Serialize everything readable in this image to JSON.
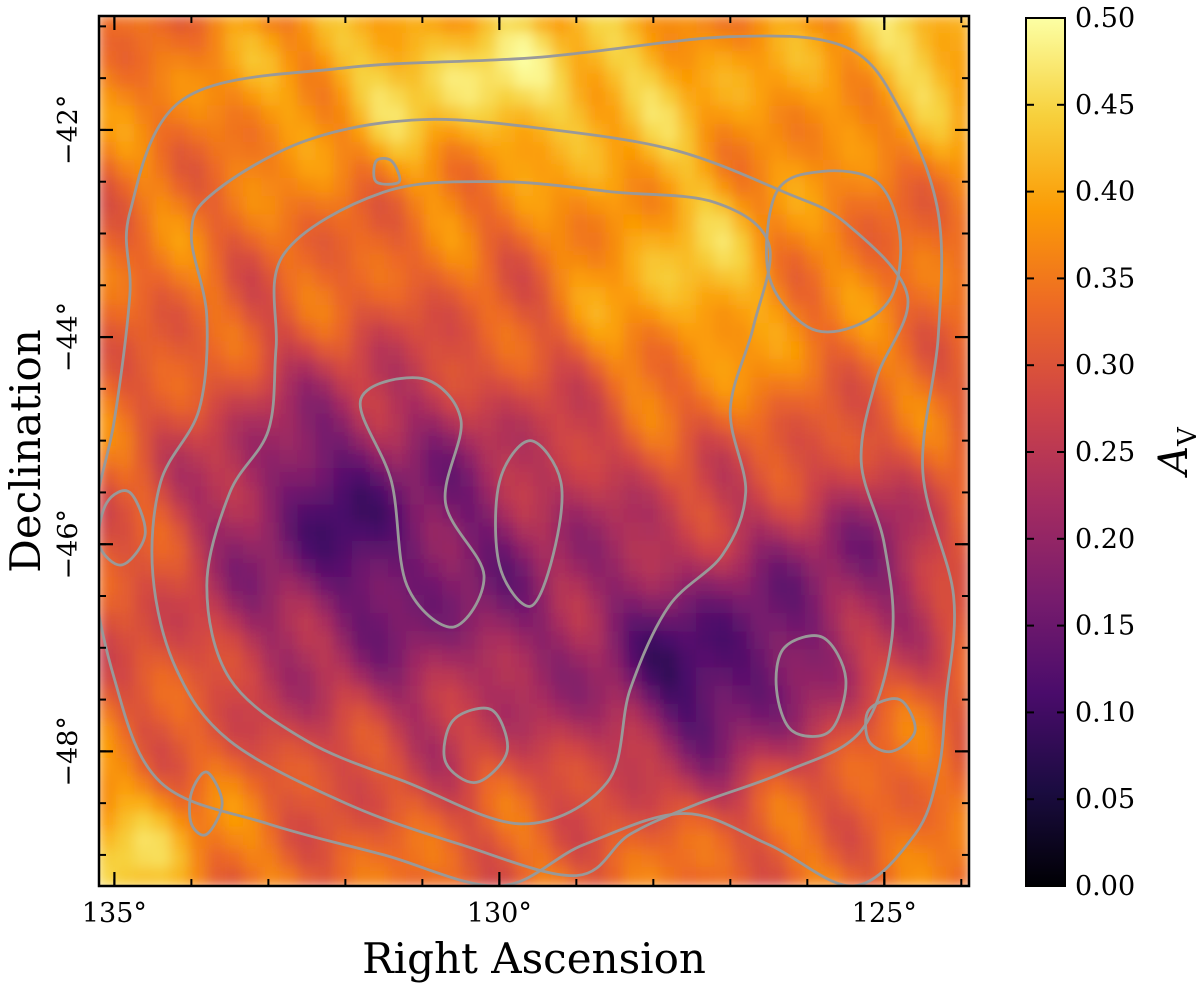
{
  "chart_data": {
    "type": "heatmap",
    "title": "",
    "xlabel": "Right Ascension",
    "ylabel": "Declination",
    "x_axis": {
      "reversed": true,
      "range": [
        135.2,
        123.9
      ],
      "ticks": [
        135,
        130,
        125
      ],
      "tick_labels": [
        "135°",
        "130°",
        "125°"
      ],
      "minor_step": 1
    },
    "y_axis": {
      "range": [
        -49.3,
        -40.9
      ],
      "ticks": [
        -48,
        -46,
        -44,
        -42
      ],
      "tick_labels": [
        "−48°",
        "−46°",
        "−44°",
        "−42°"
      ],
      "minor_step": 0.5
    },
    "colorbar": {
      "label": "A",
      "label_subscript": "V",
      "colormap": "inferno",
      "range": [
        0.0,
        0.5
      ],
      "ticks": [
        0.0,
        0.05,
        0.1,
        0.15,
        0.2,
        0.25,
        0.3,
        0.35,
        0.4,
        0.45,
        0.5
      ],
      "tick_labels": [
        "0.00",
        "0.05",
        "0.10",
        "0.15",
        "0.20",
        "0.25",
        "0.30",
        "0.35",
        "0.40",
        "0.45",
        "0.50"
      ]
    },
    "colormap_stops": [
      "#000004",
      "#1b0c41",
      "#4a0c6b",
      "#781c6d",
      "#a52c60",
      "#cf4446",
      "#ed6925",
      "#fb9b06",
      "#f7d13d",
      "#fcffa4"
    ],
    "contour_color": "#999999",
    "value_field": {
      "description": "Visual extinction A_V over the field; low (~0.15) in the central shell, high (~0.45) along the northern rim",
      "background": 0.34,
      "features": [
        {
          "ra": 130.0,
          "dec": -41.5,
          "amp": 0.12,
          "sigma_ra": 2.2,
          "sigma_dec": 0.6
        },
        {
          "ra": 127.5,
          "dec": -43.4,
          "amp": 0.09,
          "sigma_ra": 1.0,
          "sigma_dec": 0.8
        },
        {
          "ra": 134.8,
          "dec": -49.0,
          "amp": 0.1,
          "sigma_ra": 0.8,
          "sigma_dec": 0.5
        },
        {
          "ra": 124.5,
          "dec": -41.2,
          "amp": 0.1,
          "sigma_ra": 0.9,
          "sigma_dec": 0.6
        },
        {
          "ra": 130.8,
          "dec": -46.3,
          "amp": -0.16,
          "sigma_ra": 2.3,
          "sigma_dec": 1.3
        },
        {
          "ra": 127.2,
          "dec": -47.3,
          "amp": -0.2,
          "sigma_ra": 1.0,
          "sigma_dec": 0.7
        },
        {
          "ra": 125.3,
          "dec": -46.2,
          "amp": -0.14,
          "sigma_ra": 0.9,
          "sigma_dec": 0.7
        },
        {
          "ra": 132.3,
          "dec": -45.5,
          "amp": -0.1,
          "sigma_ra": 1.0,
          "sigma_dec": 0.8
        }
      ]
    },
    "contours": [
      {
        "name": "outer",
        "points": [
          [
            134.1,
            -41.7
          ],
          [
            132.0,
            -41.4
          ],
          [
            129.5,
            -41.3
          ],
          [
            127.0,
            -41.1
          ],
          [
            125.5,
            -41.2
          ],
          [
            124.8,
            -41.8
          ],
          [
            124.3,
            -42.8
          ],
          [
            124.3,
            -44.0
          ],
          [
            124.5,
            -45.3
          ],
          [
            124.1,
            -46.5
          ],
          [
            124.2,
            -47.5
          ],
          [
            124.3,
            -48.2
          ],
          [
            124.6,
            -48.8
          ],
          [
            125.4,
            -49.3
          ],
          [
            126.5,
            -48.9
          ],
          [
            127.6,
            -48.6
          ],
          [
            128.9,
            -48.9
          ],
          [
            130.0,
            -49.3
          ],
          [
            131.5,
            -49.0
          ],
          [
            133.0,
            -48.7
          ],
          [
            134.4,
            -48.3
          ],
          [
            135.0,
            -47.3
          ],
          [
            135.3,
            -46.0
          ],
          [
            135.0,
            -44.8
          ],
          [
            134.8,
            -43.6
          ],
          [
            134.8,
            -42.8
          ]
        ]
      },
      {
        "name": "middle",
        "points": [
          [
            133.7,
            -42.6
          ],
          [
            132.5,
            -42.1
          ],
          [
            131.0,
            -41.9
          ],
          [
            129.3,
            -42.0
          ],
          [
            127.7,
            -42.2
          ],
          [
            126.3,
            -42.6
          ],
          [
            125.5,
            -42.9
          ],
          [
            124.7,
            -43.6
          ],
          [
            125.1,
            -44.4
          ],
          [
            125.3,
            -45.2
          ],
          [
            125.0,
            -46.0
          ],
          [
            124.9,
            -46.9
          ],
          [
            125.3,
            -47.8
          ],
          [
            126.3,
            -48.2
          ],
          [
            127.4,
            -48.5
          ],
          [
            128.3,
            -48.8
          ],
          [
            129.0,
            -49.2
          ],
          [
            130.5,
            -48.9
          ],
          [
            132.0,
            -48.5
          ],
          [
            133.5,
            -47.9
          ],
          [
            134.2,
            -47.2
          ],
          [
            134.5,
            -46.3
          ],
          [
            134.4,
            -45.4
          ],
          [
            133.9,
            -44.7
          ],
          [
            133.8,
            -43.8
          ],
          [
            134.0,
            -43.0
          ]
        ]
      },
      {
        "name": "inner",
        "points": [
          [
            132.8,
            -43.2
          ],
          [
            131.5,
            -42.6
          ],
          [
            130.0,
            -42.5
          ],
          [
            128.5,
            -42.6
          ],
          [
            127.2,
            -42.7
          ],
          [
            126.5,
            -43.1
          ],
          [
            126.7,
            -43.9
          ],
          [
            127.0,
            -44.7
          ],
          [
            126.8,
            -45.5
          ],
          [
            127.1,
            -46.1
          ],
          [
            127.8,
            -46.6
          ],
          [
            128.3,
            -47.4
          ],
          [
            128.6,
            -48.3
          ],
          [
            129.7,
            -48.7
          ],
          [
            131.2,
            -48.3
          ],
          [
            132.5,
            -47.9
          ],
          [
            133.5,
            -47.3
          ],
          [
            133.8,
            -46.4
          ],
          [
            133.5,
            -45.5
          ],
          [
            133.0,
            -44.9
          ],
          [
            132.9,
            -44.1
          ]
        ]
      },
      {
        "name": "ring",
        "points": [
          [
            126.4,
            -42.6
          ],
          [
            125.8,
            -42.4
          ],
          [
            125.1,
            -42.5
          ],
          [
            124.8,
            -43.0
          ],
          [
            124.9,
            -43.6
          ],
          [
            125.4,
            -43.9
          ],
          [
            126.0,
            -43.9
          ],
          [
            126.5,
            -43.4
          ]
        ]
      },
      {
        "name": "knot-east",
        "points": [
          [
            135.1,
            -45.6
          ],
          [
            134.8,
            -45.5
          ],
          [
            134.6,
            -45.9
          ],
          [
            134.9,
            -46.2
          ],
          [
            135.2,
            -46.0
          ]
        ]
      },
      {
        "name": "center-a",
        "points": [
          [
            131.8,
            -44.6
          ],
          [
            131.0,
            -44.4
          ],
          [
            130.5,
            -44.8
          ],
          [
            130.7,
            -45.6
          ],
          [
            130.2,
            -46.3
          ],
          [
            130.6,
            -46.8
          ],
          [
            131.2,
            -46.4
          ],
          [
            131.4,
            -45.4
          ]
        ]
      },
      {
        "name": "center-b",
        "points": [
          [
            129.6,
            -45.0
          ],
          [
            129.2,
            -45.4
          ],
          [
            129.3,
            -46.1
          ],
          [
            129.6,
            -46.6
          ],
          [
            130.0,
            -46.2
          ],
          [
            130.0,
            -45.4
          ]
        ]
      },
      {
        "name": "west-blob",
        "points": [
          [
            126.3,
            -47.0
          ],
          [
            125.8,
            -46.9
          ],
          [
            125.5,
            -47.3
          ],
          [
            125.7,
            -47.8
          ],
          [
            126.2,
            -47.8
          ],
          [
            126.4,
            -47.4
          ]
        ]
      },
      {
        "name": "south-blob",
        "points": [
          [
            130.6,
            -47.7
          ],
          [
            130.1,
            -47.6
          ],
          [
            129.9,
            -48.0
          ],
          [
            130.3,
            -48.3
          ],
          [
            130.7,
            -48.1
          ]
        ]
      },
      {
        "name": "se-blob",
        "points": [
          [
            125.2,
            -47.6
          ],
          [
            124.8,
            -47.5
          ],
          [
            124.6,
            -47.8
          ],
          [
            124.9,
            -48.0
          ],
          [
            125.2,
            -47.9
          ]
        ]
      },
      {
        "name": "sw-blob",
        "points": [
          [
            134.0,
            -48.4
          ],
          [
            133.8,
            -48.2
          ],
          [
            133.6,
            -48.5
          ],
          [
            133.8,
            -48.8
          ],
          [
            134.0,
            -48.7
          ]
        ]
      },
      {
        "name": "knot-north",
        "points": [
          [
            131.6,
            -42.3
          ],
          [
            131.4,
            -42.3
          ],
          [
            131.3,
            -42.5
          ],
          [
            131.6,
            -42.5
          ]
        ]
      }
    ]
  }
}
